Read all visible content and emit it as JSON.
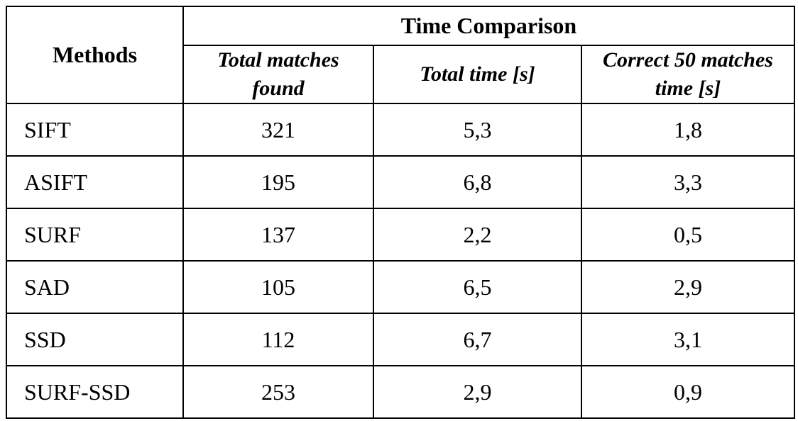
{
  "table": {
    "header": {
      "methods": "Methods",
      "group": "Time Comparison",
      "columns": [
        "Total matches found",
        "Total time [s]",
        "Correct 50 matches time [s]"
      ]
    },
    "rows": [
      [
        "SIFT",
        321,
        "5,3",
        "1,8"
      ],
      [
        "ASIFT",
        195,
        "6,8",
        "3,3"
      ],
      [
        "SURF",
        137,
        "2,2",
        "0,5"
      ],
      [
        "SAD",
        105,
        "6,5",
        "2,9"
      ],
      [
        "SSD",
        112,
        "6,7",
        "3,1"
      ],
      [
        "SURF-SSD",
        253,
        "2,9",
        "0,9"
      ]
    ]
  }
}
